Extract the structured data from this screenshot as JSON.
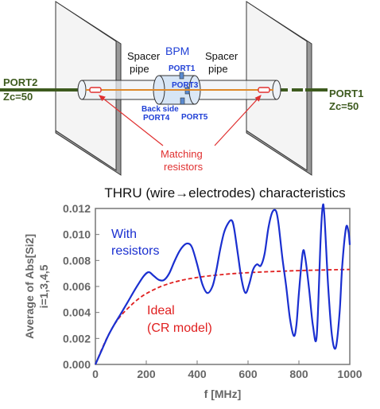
{
  "diagram": {
    "port2_label": "PORT2",
    "port2_zc": "Zc=50",
    "port1_label": "PORT1",
    "port1_zc": "Zc=50",
    "spacer_left": [
      "Spacer",
      "pipe"
    ],
    "spacer_right": [
      "Spacer",
      "pipe"
    ],
    "bpm_label": "BPM",
    "bpm_ports": [
      "PORT1",
      "PORT3",
      "PORT5"
    ],
    "back_side": [
      "Back side",
      "PORT4"
    ],
    "matching": [
      "Matching",
      "resistors"
    ]
  },
  "colors": {
    "green": "#3d5a1e",
    "blue": "#1f3fd6",
    "red": "#e03030",
    "with_line": "#1a2fd0",
    "ideal_line": "#e02020",
    "wire": "#e08a2a"
  },
  "chart_data": {
    "type": "line",
    "title": "THRU (wire→electrodes) characteristics",
    "xlabel": "f [MHz]",
    "ylabel": [
      "Average of Abs[Si2]",
      "i=1,3,4,5"
    ],
    "xlim": [
      0,
      1000
    ],
    "ylim": [
      0,
      0.012
    ],
    "xticks": [
      0,
      200,
      400,
      600,
      800,
      1000
    ],
    "xtick_labels": [
      "0",
      "200",
      "400",
      "600",
      "800",
      "1000"
    ],
    "yticks": [
      0,
      0.002,
      0.004,
      0.006,
      0.008,
      0.01,
      0.012
    ],
    "ytick_labels": [
      "0.000",
      "0.002",
      "0.004",
      "0.006",
      "0.008",
      "0.010",
      "0.012"
    ],
    "grid": false,
    "series": [
      {
        "name": "With resistors",
        "label_lines": [
          "With",
          "resistors"
        ],
        "style": "solid",
        "x": [
          0,
          25,
          50,
          75,
          100,
          130,
          160,
          190,
          210,
          230,
          250,
          270,
          290,
          310,
          330,
          350,
          365,
          380,
          400,
          420,
          440,
          460,
          475,
          490,
          505,
          520,
          535,
          545,
          560,
          575,
          590,
          605,
          620,
          635,
          650,
          665,
          680,
          695,
          710,
          720,
          735,
          750,
          765,
          780,
          790,
          800,
          815,
          825,
          840,
          855,
          870,
          885,
          893,
          900,
          915,
          930,
          945,
          960,
          970,
          985,
          995,
          1000
        ],
        "y": [
          0.0,
          0.0011,
          0.0022,
          0.0031,
          0.0039,
          0.0049,
          0.0059,
          0.0068,
          0.0071,
          0.0068,
          0.0065,
          0.0065,
          0.007,
          0.0079,
          0.0087,
          0.0092,
          0.0093,
          0.009,
          0.0077,
          0.0062,
          0.0055,
          0.006,
          0.0072,
          0.0088,
          0.0101,
          0.0108,
          0.0111,
          0.0105,
          0.0085,
          0.0065,
          0.0055,
          0.0062,
          0.0073,
          0.0077,
          0.0076,
          0.0085,
          0.0105,
          0.0117,
          0.0118,
          0.0108,
          0.0082,
          0.006,
          0.0035,
          0.0022,
          0.003,
          0.0055,
          0.0086,
          0.0082,
          0.0058,
          0.003,
          0.0022,
          0.0095,
          0.0121,
          0.0115,
          0.006,
          0.0022,
          0.0013,
          0.004,
          0.0075,
          0.0105,
          0.0102,
          0.0092
        ]
      },
      {
        "name": "Ideal (CR model)",
        "label_lines": [
          "Ideal",
          "(CR model)"
        ],
        "style": "dashed",
        "x": [
          0,
          25,
          50,
          75,
          100,
          125,
          150,
          175,
          200,
          250,
          300,
          350,
          400,
          450,
          500,
          550,
          600,
          650,
          700,
          750,
          800,
          850,
          900,
          950,
          1000
        ],
        "y": [
          0.0,
          0.00117,
          0.00222,
          0.00308,
          0.00375,
          0.00426,
          0.00473,
          0.00513,
          0.00545,
          0.00594,
          0.00628,
          0.00652,
          0.00669,
          0.00682,
          0.00692,
          0.007,
          0.00706,
          0.00711,
          0.00715,
          0.00719,
          0.00722,
          0.00725,
          0.00727,
          0.00729,
          0.00731
        ]
      }
    ]
  }
}
